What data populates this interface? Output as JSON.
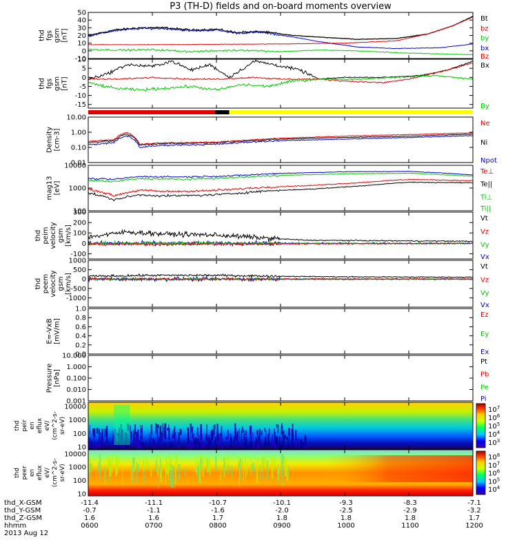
{
  "title": "P3 (TH-D) fields and on-board moments overview",
  "colors": {
    "black": "#000000",
    "red": "#e00000",
    "green": "#00c800",
    "blue": "#0000d0",
    "yellow": "#ffff00"
  },
  "chart_data": {
    "type": "line",
    "x_label_hhmm": "hhmm",
    "x_ticks_hhmm": [
      "0600",
      "0700",
      "0800",
      "0900",
      "1000",
      "1100",
      "1200"
    ],
    "date": "2013 Aug 12",
    "orbit": [
      {
        "label": "thd_X-GSM",
        "values": [
          "-11.4",
          "-11.1",
          "-10.7",
          "-10.1",
          "-9.3",
          "-8.3",
          "-7.1"
        ]
      },
      {
        "label": "thd_Y-GSM",
        "values": [
          "-0.7",
          "-1.1",
          "-1.6",
          "-2.0",
          "-2.5",
          "-2.9",
          "-3.2"
        ]
      },
      {
        "label": "thd_Z-GSM",
        "values": [
          "1.6",
          "1.6",
          "1.7",
          "1.8",
          "1.8",
          "1.8",
          "1.7"
        ]
      }
    ],
    "panels": [
      {
        "id": "fgs",
        "ylabel": [
          "thd",
          "fgs",
          "gsm",
          "[nT]"
        ],
        "scale": "linear",
        "ylim": [
          -10,
          50
        ],
        "ticks": [
          "50",
          "40",
          "30",
          "20",
          "10",
          "0",
          "-10"
        ],
        "legend": [
          {
            "name": "Bt",
            "color": "#000000"
          },
          {
            "name": "bz",
            "color": "#e00000"
          },
          {
            "name": "by",
            "color": "#00c800"
          },
          {
            "name": "bx",
            "color": "#0000d0"
          },
          {
            "name": "Bz",
            "color": "#e00000"
          }
        ]
      },
      {
        "id": "fgs-zoom",
        "ylabel": [
          "thd",
          "fgs",
          "gsm",
          "[nT]"
        ],
        "scale": "linear",
        "ylim": [
          -17,
          10
        ],
        "ticks": [
          "10",
          "5",
          "0",
          "-5",
          "-10",
          "-15"
        ],
        "legend": [
          {
            "name": "Bx",
            "color": "#000000"
          },
          {
            "name": "By",
            "color": "#00c800"
          }
        ]
      },
      {
        "id": "density",
        "ylabel": [
          "Density",
          "[cm-3]"
        ],
        "scale": "log",
        "ylim": [
          0.01,
          10
        ],
        "ticks": [
          "10.00",
          "1.00",
          "0.10",
          "0.01"
        ],
        "legend": [
          {
            "name": "Ne",
            "color": "#e00000"
          },
          {
            "name": "Ni",
            "color": "#000000"
          },
          {
            "name": "Npot",
            "color": "#0000d0"
          }
        ]
      },
      {
        "id": "temperature",
        "ylabel": [
          "mag13",
          "[eV]"
        ],
        "scale": "log",
        "ylim": [
          100,
          10000
        ],
        "ticks": [
          "10000",
          "1000",
          "100"
        ],
        "legend": [
          {
            "name": "Te⊥",
            "color": "#e00000"
          },
          {
            "name": "Te||",
            "color": "#000000"
          },
          {
            "name": "Ti⊥",
            "color": "#00c800"
          },
          {
            "name": "Ti||",
            "color": "#00c800"
          }
        ]
      },
      {
        "id": "peim-velocity",
        "ylabel": [
          "thd",
          "peim",
          "velocity",
          "gsm",
          "[km/s]"
        ],
        "scale": "linear",
        "ylim": [
          -150,
          300
        ],
        "ticks": [
          "300",
          "200",
          "100",
          "0",
          "-100"
        ],
        "legend": [
          {
            "name": "Vt",
            "color": "#000000"
          },
          {
            "name": "Vz",
            "color": "#e00000"
          },
          {
            "name": "Vy",
            "color": "#00c800"
          },
          {
            "name": "Vx",
            "color": "#0000d0"
          }
        ]
      },
      {
        "id": "peem-velocity",
        "ylabel": [
          "thd",
          "peem",
          "velocity",
          "gsm",
          "[km/s]"
        ],
        "scale": "linear",
        "ylim": [
          -1500,
          1000
        ],
        "ticks": [
          "1000",
          "500",
          "0",
          "-500",
          "-1000"
        ],
        "legend": [
          {
            "name": "Vt",
            "color": "#000000"
          },
          {
            "name": "Vz",
            "color": "#e00000"
          },
          {
            "name": "Vy",
            "color": "#00c800"
          },
          {
            "name": "Vx",
            "color": "#0000d0"
          }
        ]
      },
      {
        "id": "efield",
        "ylabel": [
          "E=-VxB",
          "[mV/m]"
        ],
        "scale": "linear",
        "ylim": [
          0,
          1
        ],
        "ticks": [
          "1.0",
          "0.8",
          "0.6",
          "0.4",
          "0.2",
          "0.0"
        ],
        "legend": [
          {
            "name": "Ez",
            "color": "#e00000"
          },
          {
            "name": "Ey",
            "color": "#00c800"
          },
          {
            "name": "Ex",
            "color": "#0000d0"
          }
        ]
      },
      {
        "id": "pressure",
        "ylabel": [
          "Pressure",
          "[nPa]"
        ],
        "scale": "log",
        "ylim": [
          0.001,
          10
        ],
        "ticks": [
          "10.000",
          "1.000",
          "0.100",
          "0.010",
          "0.001"
        ],
        "legend": [
          {
            "name": "Pt",
            "color": "#000000"
          },
          {
            "name": "Pb",
            "color": "#e00000"
          },
          {
            "name": "Pe",
            "color": "#00c800"
          },
          {
            "name": "Pi",
            "color": "#0000d0"
          }
        ]
      },
      {
        "id": "peir-spectrogram",
        "ylabel": [
          "thd",
          "peir",
          "en",
          "eflux",
          "eV/",
          "(cm^2-s-",
          "sr-eV)"
        ],
        "scale": "log",
        "ylim": [
          7,
          20000
        ],
        "ticks": [
          "10000",
          "1000",
          "100",
          "10"
        ],
        "colorbar_ticks": [
          "10^7",
          "10^6",
          "10^5",
          "10^4",
          "10^3"
        ]
      },
      {
        "id": "peer-spectrogram",
        "ylabel": [
          "thd",
          "peer",
          "en",
          "eflux",
          "eV/",
          "(cm^2-s-",
          "sr-eV)"
        ],
        "scale": "log",
        "ylim": [
          7,
          20000
        ],
        "ticks": [
          "10000",
          "1000",
          "100",
          "10"
        ],
        "colorbar_ticks": [
          "10^8",
          "10^7",
          "10^6",
          "10^5",
          "10^4"
        ]
      }
    ]
  }
}
